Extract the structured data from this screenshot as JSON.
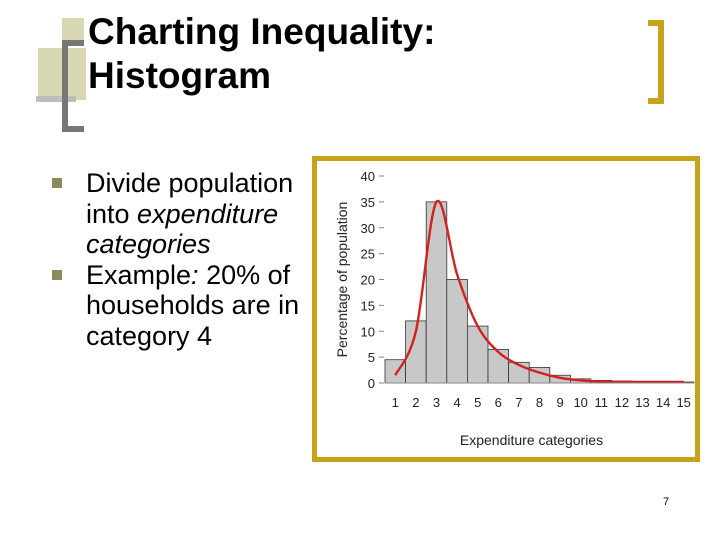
{
  "slide": {
    "title_line1": "Charting Inequality:",
    "title_line2": "Histogram",
    "page_number": "7"
  },
  "bullets": [
    {
      "runs": [
        {
          "text": "Divide population into ",
          "italic": false
        },
        {
          "text": "expenditure categories",
          "italic": true
        }
      ]
    },
    {
      "runs": [
        {
          "text": "Example",
          "italic": false
        },
        {
          "text": ": ",
          "italic": true
        },
        {
          "text": "20% of households are in category 4",
          "italic": false
        }
      ]
    }
  ],
  "colors": {
    "accent_gold": "#c9a21b",
    "bullet": "#8a8a5c",
    "bar_fill": "#c8c8c8",
    "curve": "#d42020"
  },
  "chart_data": {
    "type": "bar",
    "ylabel": "Percentage of population",
    "xlabel": "Expenditure categories",
    "categories": [
      "1",
      "2",
      "3",
      "4",
      "5",
      "6",
      "7",
      "8",
      "9",
      "10",
      "11",
      "12",
      "13",
      "14",
      "15"
    ],
    "values": [
      4.5,
      12,
      35,
      20,
      11,
      6.5,
      4,
      3,
      1.5,
      0.8,
      0.5,
      0.4,
      0.3,
      0.3,
      0.2
    ],
    "curve_values": [
      1.5,
      10,
      35,
      21,
      11,
      6,
      3.5,
      2,
      1,
      0.5,
      0.3,
      0.2,
      0.2,
      0.2,
      0.2
    ],
    "ylim": [
      0,
      40
    ],
    "yticks": [
      0,
      5,
      10,
      15,
      20,
      25,
      30,
      35,
      40
    ],
    "grid": false
  }
}
